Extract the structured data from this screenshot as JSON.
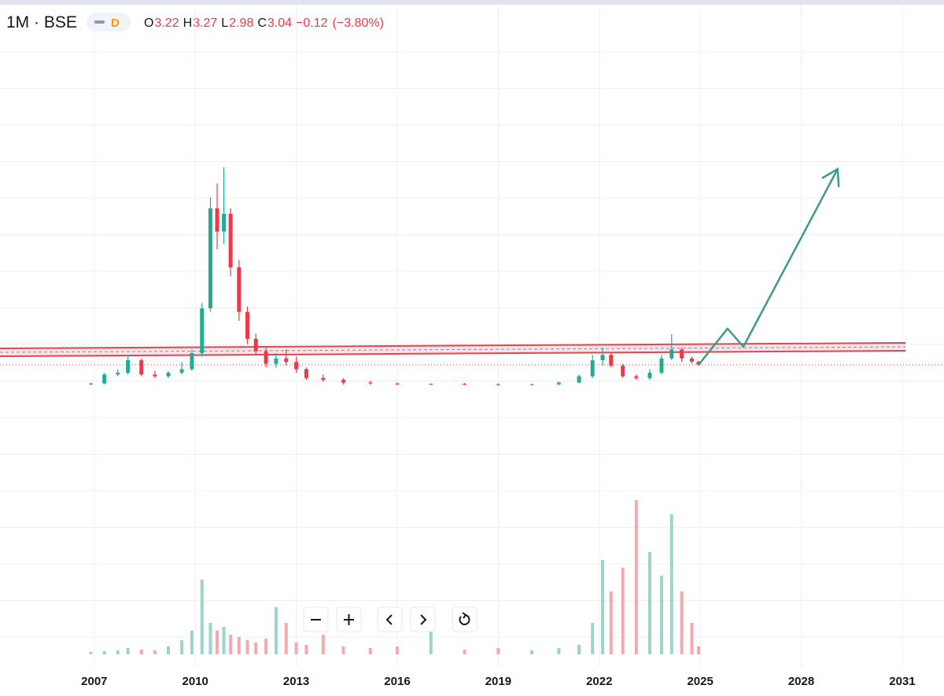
{
  "header": {
    "symbol": "1M · BSE",
    "badge": "D",
    "ohlc": [
      {
        "label": "O",
        "value": 3.22
      },
      {
        "label": "H",
        "value": 3.27
      },
      {
        "label": "L",
        "value": 2.98
      },
      {
        "label": "C",
        "value": 3.04
      }
    ],
    "change": {
      "value": -0.12,
      "label": "−0.12"
    },
    "change_pct": {
      "value": -3.8,
      "label": "(−3.80%)"
    }
  },
  "chart_data": {
    "type": "candlestick",
    "x": [
      2006.9,
      2007.3,
      2007.7,
      2008.0,
      2008.4,
      2008.8,
      2009.2,
      2009.6,
      2009.9,
      2010.2,
      2010.45,
      2010.65,
      2010.85,
      2011.05,
      2011.3,
      2011.55,
      2011.8,
      2012.1,
      2012.4,
      2012.7,
      2013.0,
      2013.3,
      2013.8,
      2014.4,
      2015.2,
      2016.0,
      2017.0,
      2018.0,
      2019.0,
      2020.0,
      2020.8,
      2021.4,
      2021.8,
      2022.1,
      2022.35,
      2022.7,
      2023.1,
      2023.5,
      2023.85,
      2024.15,
      2024.45,
      2024.75,
      2024.95
    ],
    "open": [
      1.95,
      2.0,
      2.5,
      2.6,
      3.3,
      2.5,
      2.4,
      2.6,
      2.8,
      3.7,
      6.2,
      11.8,
      10.5,
      11.5,
      8.5,
      6.0,
      4.5,
      3.8,
      3.1,
      3.4,
      3.2,
      2.8,
      2.3,
      2.2,
      2.05,
      2.0,
      1.95,
      1.98,
      1.95,
      1.92,
      1.95,
      2.05,
      2.4,
      3.3,
      3.6,
      3.0,
      2.4,
      2.3,
      2.6,
      3.4,
      3.9,
      3.4,
      3.22
    ],
    "high": [
      2.05,
      2.6,
      2.8,
      3.6,
      3.4,
      2.7,
      2.7,
      3.2,
      3.9,
      6.5,
      12.4,
      13.2,
      14.1,
      11.8,
      8.9,
      6.3,
      4.8,
      4.0,
      3.7,
      3.9,
      3.5,
      2.9,
      2.5,
      2.3,
      2.15,
      2.05,
      2.0,
      2.02,
      2.0,
      1.98,
      2.1,
      2.5,
      3.6,
      4.0,
      3.7,
      3.1,
      2.5,
      2.8,
      3.6,
      4.76,
      4.0,
      3.5,
      3.27
    ],
    "low": [
      1.9,
      1.95,
      2.4,
      2.5,
      2.4,
      2.3,
      2.3,
      2.5,
      2.7,
      3.5,
      6.0,
      9.5,
      9.8,
      8.0,
      5.5,
      4.2,
      3.6,
      2.9,
      2.9,
      3.0,
      2.6,
      2.2,
      2.1,
      1.95,
      1.95,
      1.9,
      1.9,
      1.9,
      1.88,
      1.88,
      1.9,
      2.0,
      2.3,
      3.0,
      2.9,
      2.3,
      2.2,
      2.2,
      2.5,
      3.3,
      3.2,
      3.1,
      2.98
    ],
    "close": [
      2.0,
      2.5,
      2.6,
      3.3,
      2.5,
      2.4,
      2.6,
      2.8,
      3.7,
      6.2,
      11.8,
      10.5,
      11.5,
      8.5,
      6.0,
      4.5,
      3.8,
      3.1,
      3.4,
      3.2,
      2.8,
      2.3,
      2.2,
      2.05,
      2.0,
      1.95,
      1.98,
      1.95,
      1.92,
      1.95,
      2.05,
      2.4,
      3.3,
      3.6,
      3.0,
      2.4,
      2.3,
      2.6,
      3.4,
      3.9,
      3.4,
      3.22,
      3.04
    ],
    "volume": [
      3,
      4,
      5,
      8,
      6,
      5,
      10,
      18,
      30,
      95,
      40,
      30,
      35,
      25,
      22,
      18,
      15,
      20,
      60,
      40,
      15,
      12,
      25,
      10,
      8,
      10,
      30,
      6,
      8,
      5,
      8,
      12,
      40,
      120,
      80,
      110,
      196,
      130,
      100,
      178,
      80,
      40,
      10
    ],
    "up_color": "#22ab94",
    "down_color": "#f23645",
    "up_volume_color": "#9bd4cb",
    "down_volume_color": "#f5a9ae",
    "xlim": [
      2004.2,
      2032.24
    ],
    "xticks": [
      2007,
      2010,
      2013,
      2016,
      2019,
      2022,
      2025,
      2028,
      2031
    ],
    "ylim": [
      0,
      21.7
    ],
    "volume_ylim": [
      0,
      250
    ],
    "grid": true,
    "resistance": {
      "x": [
        2004.2,
        2031.1
      ],
      "y": [
        3.74,
        4.05
      ],
      "color": "#e0474f"
    },
    "projection": {
      "x": [
        2024.95,
        2025.81,
        2026.28,
        2029.08
      ],
      "y": [
        3.04,
        5.07,
        4.05,
        14.0
      ],
      "color": "#3d9a8b"
    },
    "close_line_color": "#f23645"
  }
}
